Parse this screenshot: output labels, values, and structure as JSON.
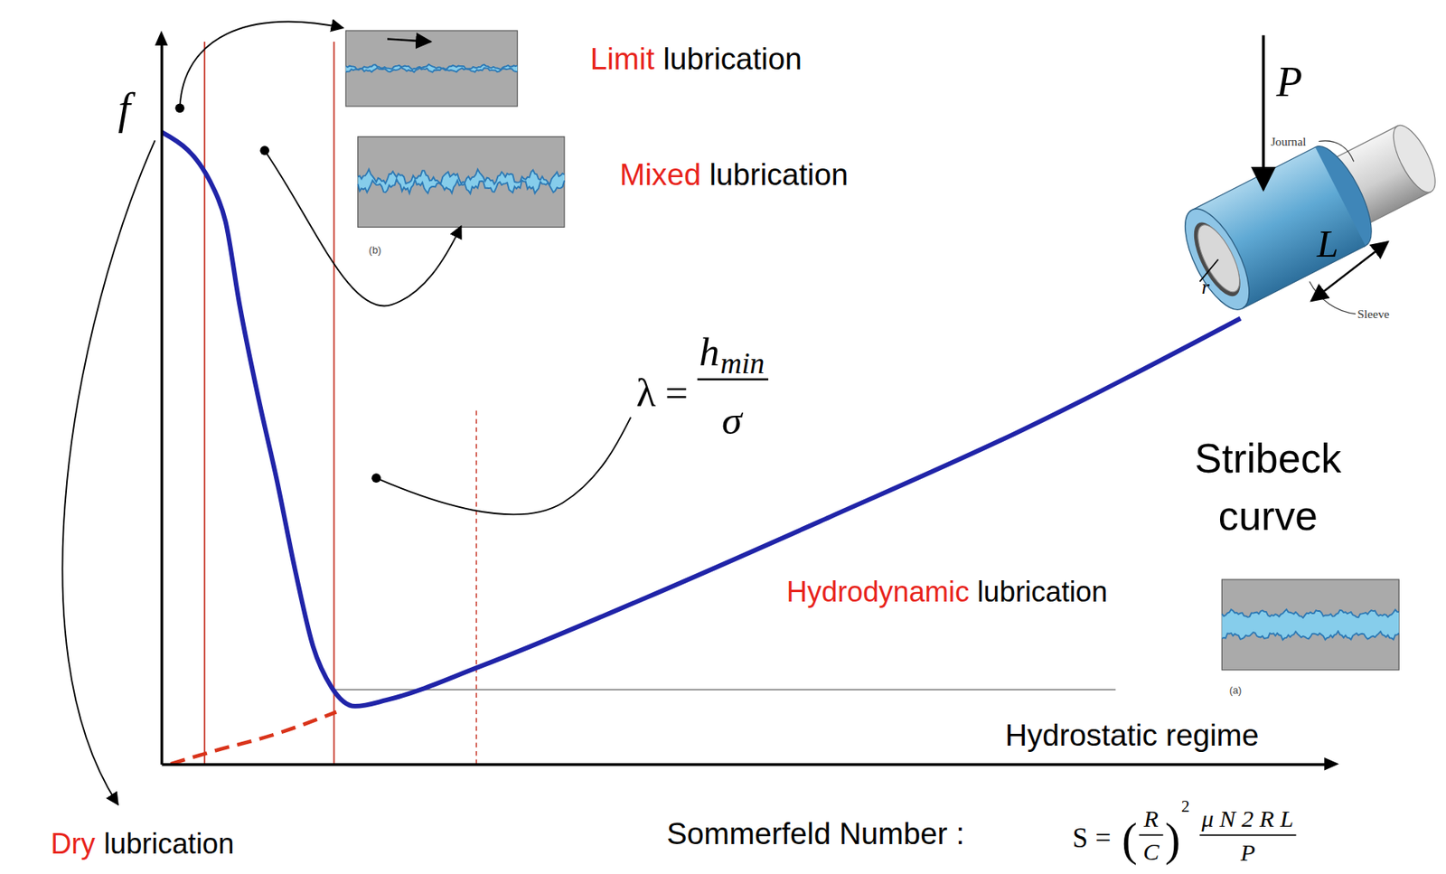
{
  "chart_data": {
    "type": "line",
    "title": "Stribeck curve",
    "y_label": "f",
    "x_label": "Sommerfeld Number :",
    "xlim": [
      0,
      100
    ],
    "ylim": [
      0,
      100
    ],
    "tick_labels": false,
    "series": [
      {
        "color": "#2024a8",
        "line_style": "solid",
        "x": [
          0,
          4.5,
          5.5,
          6.7,
          8.3,
          9.9,
          11.5,
          13.0,
          14.6,
          16.6,
          19.4,
          27.3,
          41.5,
          57.3,
          73.1,
          92.5
        ],
        "values": [
          87.5,
          79.6,
          75.1,
          63.6,
          50.8,
          39.3,
          26.6,
          16.3,
          10.6,
          8.0,
          8.9,
          13.5,
          23.0,
          34.2,
          45.7,
          61.7
        ]
      },
      {
        "color": "#d9331a",
        "line_style": "dashed",
        "x": [
          0.8,
          4.3,
          9.9,
          15.0
        ],
        "values": [
          0,
          1.7,
          4.2,
          7.2
        ]
      }
    ],
    "boundaries": [
      3.7,
      14.8,
      27.0
    ],
    "boundary_tops": [
      100,
      100,
      49
    ],
    "hydrostatic_level": 10.3,
    "hydrostatic_extent": [
      14.8,
      81.8
    ],
    "regimes": [
      {
        "highlight": "Limit",
        "text": "lubrication"
      },
      {
        "highlight": "Mixed",
        "text": "lubrication"
      },
      {
        "highlight": "Hydrodynamic",
        "text": "lubrication"
      },
      {
        "highlight": "Dry",
        "text": "lubrication"
      }
    ],
    "hydrostatic_label": "Hydrostatic regime",
    "lambda": {
      "symbol": "λ",
      "equals": "=",
      "numerator": "h",
      "subscript": "min",
      "denominator": "σ"
    },
    "sommerfeld": {
      "symbol": "S",
      "equals": "=",
      "open": "(",
      "ratio_top": "R",
      "ratio_bottom": "C",
      "close": ")",
      "exponent": "2",
      "numerator": "μ N 2 R L",
      "denominator": "P"
    },
    "bearing": {
      "load": "P",
      "journal": "Journal",
      "sleeve": "Sleeve",
      "length": "L",
      "radius": "r"
    },
    "insets": [
      "(b)",
      "(a)"
    ]
  }
}
